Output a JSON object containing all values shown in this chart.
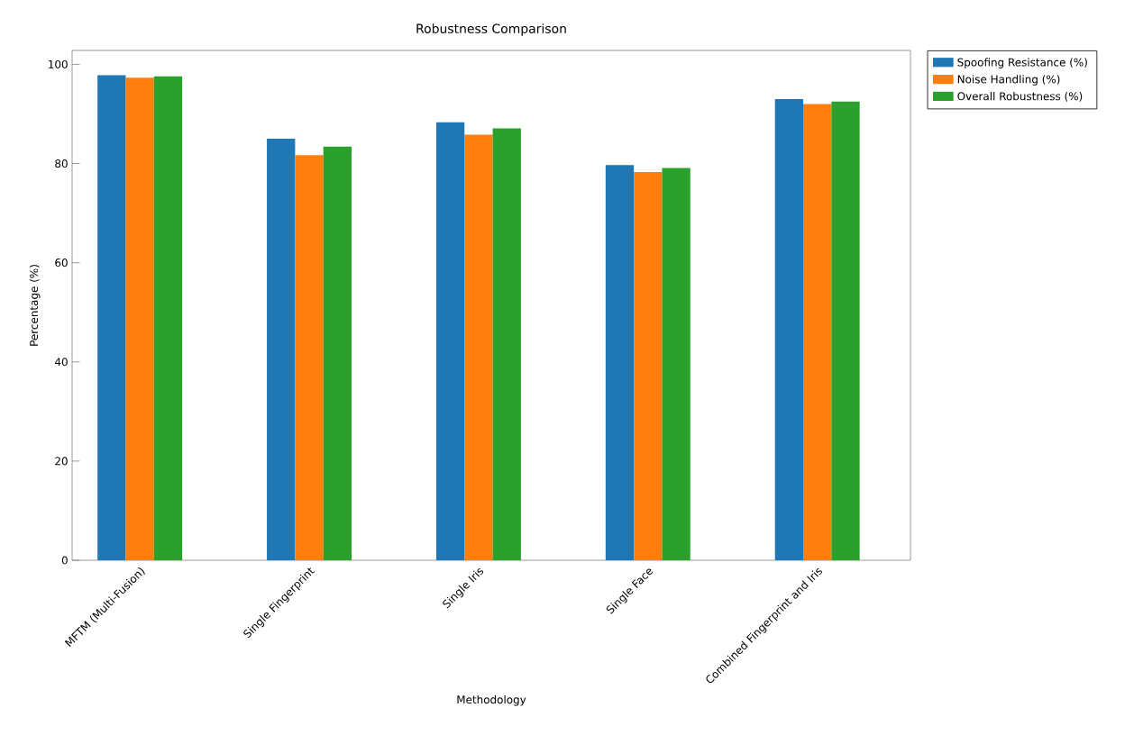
{
  "chart_data": {
    "type": "bar",
    "title": "Robustness Comparison",
    "xlabel": "Methodology",
    "ylabel": "Percentage (%)",
    "categories": [
      "MFTM (Multi-Fusion)",
      "Single Fingerprint",
      "Single Iris",
      "Single Face",
      "Combined Fingerprint and Iris"
    ],
    "series": [
      {
        "name": "Spoofing Resistance (%)",
        "color": "#1f77b4",
        "values": [
          97.8,
          85.0,
          88.3,
          79.7,
          93.0
        ]
      },
      {
        "name": "Noise Handling (%)",
        "color": "#ff7f0e",
        "values": [
          97.3,
          81.7,
          85.8,
          78.3,
          92.0
        ]
      },
      {
        "name": "Overall Robustness (%)",
        "color": "#2ca02c",
        "values": [
          97.6,
          83.4,
          87.1,
          79.1,
          92.5
        ]
      }
    ],
    "ylim": [
      0,
      102.8
    ],
    "yticks": [
      0,
      20,
      40,
      60,
      80,
      100
    ],
    "grid": false,
    "legend": "right"
  }
}
